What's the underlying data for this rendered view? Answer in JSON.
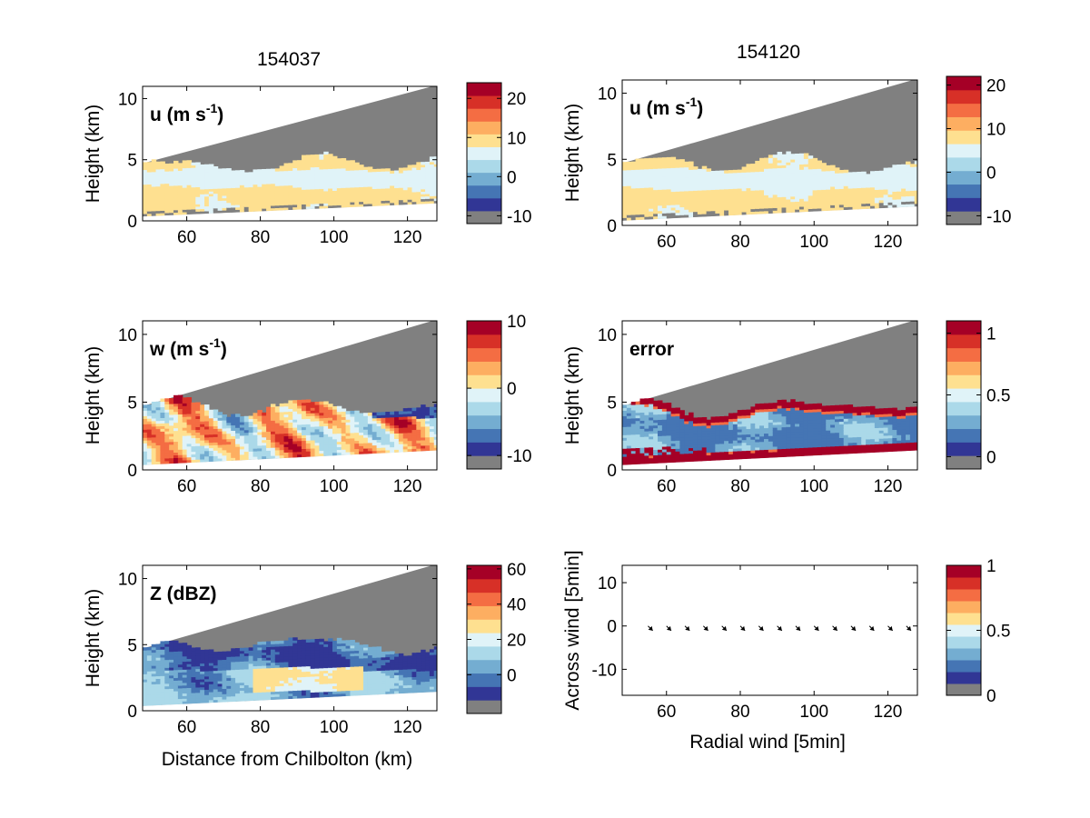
{
  "figure": {
    "colors": {
      "missing": "#808080",
      "colormap": [
        "#313695",
        "#4575b4",
        "#74add1",
        "#abd9e9",
        "#e0f3f8",
        "#fee090",
        "#fdae61",
        "#f46d43",
        "#d73027",
        "#a50026"
      ]
    },
    "titles": [
      "154037",
      "154120"
    ],
    "radar_xlabel": "Distance from Chilbolton (km)",
    "vector_xlabel": "Radial wind [5min]",
    "vector_ylabel": "Across wind [5min]"
  },
  "chart_data": [
    {
      "type": "heatmap",
      "title": "154037",
      "label": "u (m s-1)",
      "label_main": "u (m s",
      "label_sup": "-1",
      "label_end": ")",
      "xlabel": "",
      "ylabel": "Height (km)",
      "xlim": [
        48,
        128
      ],
      "ylim": [
        0,
        11
      ],
      "xticks": [
        60,
        80,
        100,
        120
      ],
      "yticks": [
        0,
        5,
        10
      ],
      "colorbar": {
        "range": [
          -12,
          24
        ],
        "ticks": [
          -10,
          0,
          10,
          20
        ]
      },
      "approx_values": {
        "lower_layer": 8,
        "middle_layer": 3,
        "upper_layer": 8
      }
    },
    {
      "type": "heatmap",
      "title": "154120",
      "label": "u (m s-1)",
      "label_main": "u (m s",
      "label_sup": "-1",
      "label_end": ")",
      "xlabel": "",
      "ylabel": "Height (km)",
      "xlim": [
        48,
        128
      ],
      "ylim": [
        0,
        11
      ],
      "xticks": [
        60,
        80,
        100,
        120
      ],
      "yticks": [
        0,
        5,
        10
      ],
      "colorbar": {
        "range": [
          -12,
          22
        ],
        "ticks": [
          -10,
          0,
          10,
          20
        ]
      },
      "approx_values": {
        "lower_layer": 8,
        "middle_layer": 3,
        "upper_layer": 8
      }
    },
    {
      "type": "heatmap",
      "label": "w (m s-1)",
      "label_main": "w (m s",
      "label_sup": "-1",
      "label_end": ")",
      "xlabel": "",
      "ylabel": "Height (km)",
      "xlim": [
        48,
        128
      ],
      "ylim": [
        0,
        11
      ],
      "xticks": [
        60,
        80,
        100,
        120
      ],
      "yticks": [
        0,
        5,
        10
      ],
      "colorbar": {
        "range": [
          -12,
          10
        ],
        "ticks": [
          -10,
          0,
          10
        ]
      }
    },
    {
      "type": "heatmap",
      "label": "error",
      "xlabel": "",
      "ylabel": "Height (km)",
      "xlim": [
        48,
        128
      ],
      "ylim": [
        0,
        11
      ],
      "xticks": [
        60,
        80,
        100,
        120
      ],
      "yticks": [
        0,
        5,
        10
      ],
      "colorbar": {
        "range": [
          -0.1,
          1.1
        ],
        "ticks": [
          0,
          0.5,
          1
        ]
      }
    },
    {
      "type": "heatmap",
      "label": "Z (dBZ)",
      "xlabel": "Distance from Chilbolton (km)",
      "ylabel": "Height (km)",
      "xlim": [
        48,
        128
      ],
      "ylim": [
        0,
        11
      ],
      "xticks": [
        60,
        80,
        100,
        120
      ],
      "yticks": [
        0,
        5,
        10
      ],
      "colorbar": {
        "range": [
          -22,
          62
        ],
        "ticks": [
          0,
          20,
          40,
          60
        ]
      },
      "approx_values": {
        "core_max": 35,
        "typical": 15
      }
    },
    {
      "type": "scatter",
      "subtype": "quiver",
      "xlabel": "Radial wind [5min]",
      "ylabel": "Across wind [5min]",
      "xlim": [
        48,
        128
      ],
      "ylim": [
        -16,
        14
      ],
      "xticks": [
        60,
        80,
        100,
        120
      ],
      "yticks": [
        -10,
        0,
        10
      ],
      "x": [
        55,
        60,
        65,
        70,
        75,
        80,
        85,
        90,
        95,
        100,
        105,
        110,
        115,
        120,
        125
      ],
      "y": [
        0,
        0,
        0,
        0,
        0,
        0,
        0,
        0,
        0,
        0,
        0,
        0,
        0,
        0,
        0
      ],
      "u": [
        2,
        2,
        2,
        2,
        2,
        2,
        2,
        2,
        2,
        2,
        2,
        2,
        2,
        2,
        2
      ],
      "v": [
        -2,
        -2,
        -2,
        -2,
        -2,
        -2,
        -2,
        -2,
        -2,
        -2,
        -2,
        -2,
        -2,
        -2,
        -2
      ],
      "colorbar": {
        "range": [
          0,
          1
        ],
        "ticks": [
          0,
          0.5,
          1
        ]
      }
    }
  ]
}
